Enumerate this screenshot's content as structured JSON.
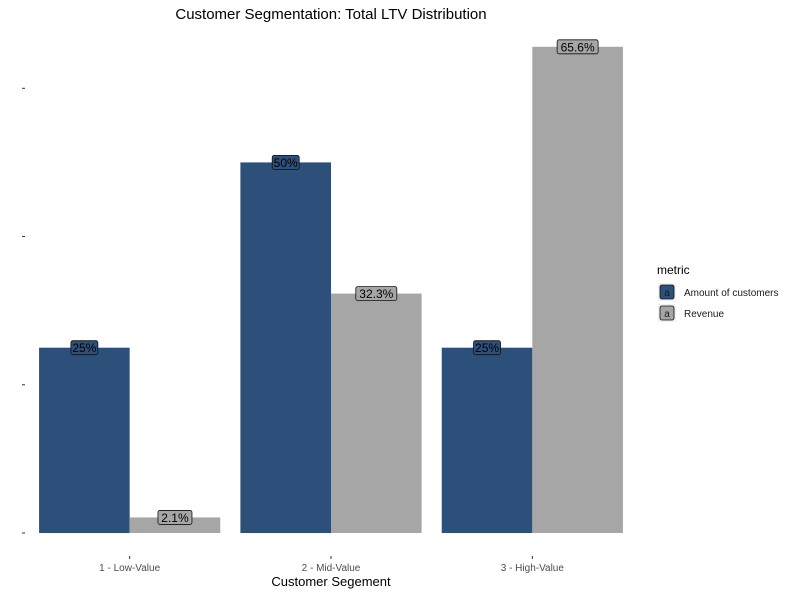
{
  "chart_data": {
    "type": "bar",
    "title": "Customer Segmentation: Total LTV Distribution",
    "xlabel": "Customer Segement",
    "ylabel": "",
    "categories": [
      "1 - Low-Value",
      "2 - Mid-Value",
      "3 - High-Value"
    ],
    "series": [
      {
        "name": "Amount of customers",
        "values": [
          25,
          50,
          25
        ],
        "labels": [
          "25%",
          "50%",
          "25%"
        ],
        "color": "#2c5079"
      },
      {
        "name": "Revenue",
        "values": [
          2.1,
          32.3,
          65.6
        ],
        "labels": [
          "2.1%",
          "32.3%",
          "65.6%"
        ],
        "color": "#a6a6a6"
      }
    ],
    "ylim": [
      0,
      68
    ],
    "y_ticks": [
      0,
      20,
      40,
      60
    ],
    "y_tick_labels_visible": false,
    "grid": false,
    "legend": {
      "title": "metric",
      "position": "right",
      "key_glyph": "a"
    },
    "label_fill": {
      "Amount of customers": "#2c5079",
      "Revenue": "#a6a6a6"
    }
  }
}
